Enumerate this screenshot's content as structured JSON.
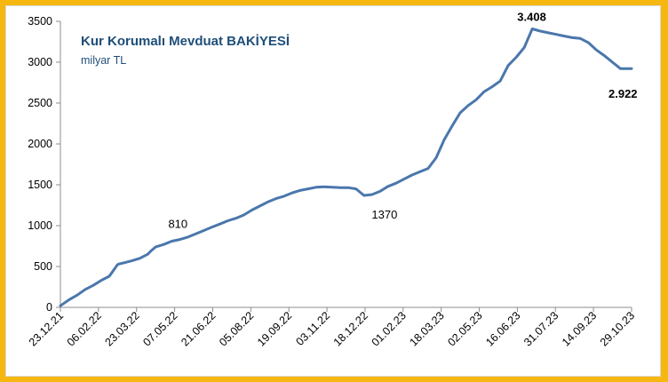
{
  "chart_data": {
    "type": "line",
    "title": "Kur Korumalı Mevduat BAKİYESİ",
    "subtitle": "milyar TL",
    "ylim": [
      0,
      3500
    ],
    "yticks": [
      0,
      500,
      1000,
      1500,
      2000,
      2500,
      3000,
      3500
    ],
    "xlim": [
      "2021-12-23",
      "2023-12-06"
    ],
    "xtick_labels": [
      "23.12.21",
      "06.02.22",
      "23.03.22",
      "07.05.22",
      "21.06.22",
      "05.08.22",
      "19.09.22",
      "03.11.22",
      "18.12.22",
      "01.02.23",
      "18.03.23",
      "02.05.23",
      "16.06.23",
      "31.07.23",
      "14.09.23",
      "29.10.23"
    ],
    "grid": false,
    "legend": "none",
    "line_color": "#4a77ac",
    "annotations": [
      {
        "text": "810",
        "x": "2022-05-10",
        "y": 810,
        "bold": false
      },
      {
        "text": "1370",
        "x": "2023-01-20",
        "y": 1370,
        "bold": false
      },
      {
        "text": "3.408",
        "x": "2023-08-23",
        "y": 3408,
        "bold": true
      },
      {
        "text": "2.922",
        "x": "2023-12-06",
        "y": 2922,
        "bold": true
      }
    ],
    "series": [
      {
        "x": [
          "2021-12-23",
          "2022-01-03",
          "2022-01-13",
          "2022-01-23",
          "2022-02-02",
          "2022-02-12",
          "2022-02-22",
          "2022-03-02",
          "2022-03-04",
          "2022-03-06",
          "2022-03-12",
          "2022-03-22",
          "2022-04-01",
          "2022-04-11",
          "2022-04-15",
          "2022-04-21",
          "2022-05-01",
          "2022-05-11",
          "2022-05-21",
          "2022-05-31",
          "2022-06-10",
          "2022-06-20",
          "2022-06-30",
          "2022-07-10",
          "2022-07-20",
          "2022-07-30",
          "2022-08-09",
          "2022-08-19",
          "2022-08-29",
          "2022-09-08",
          "2022-09-18",
          "2022-09-28",
          "2022-10-08",
          "2022-10-18",
          "2022-10-28",
          "2022-11-07",
          "2022-11-17",
          "2022-11-27",
          "2022-12-07",
          "2022-12-17",
          "2022-12-27",
          "2023-01-06",
          "2023-01-16",
          "2023-01-26",
          "2023-02-05",
          "2023-02-15",
          "2023-02-25",
          "2023-03-07",
          "2023-03-17",
          "2023-03-27",
          "2023-04-06",
          "2023-04-16",
          "2023-04-26",
          "2023-05-06",
          "2023-05-16",
          "2023-05-26",
          "2023-06-05",
          "2023-06-15",
          "2023-06-25",
          "2023-07-05",
          "2023-07-15",
          "2023-07-25",
          "2023-08-04",
          "2023-08-14",
          "2023-08-24",
          "2023-09-03",
          "2023-09-13",
          "2023-09-23",
          "2023-10-03",
          "2023-10-13",
          "2023-10-23",
          "2023-11-02",
          "2023-11-12",
          "2023-11-22",
          "2023-12-06"
        ],
        "values": [
          20,
          95,
          150,
          220,
          270,
          330,
          380,
          490,
          520,
          530,
          545,
          570,
          600,
          650,
          690,
          740,
          770,
          810,
          830,
          860,
          900,
          940,
          980,
          1020,
          1060,
          1090,
          1130,
          1190,
          1240,
          1290,
          1330,
          1360,
          1400,
          1430,
          1450,
          1470,
          1475,
          1470,
          1465,
          1465,
          1450,
          1370,
          1380,
          1420,
          1480,
          1520,
          1570,
          1620,
          1660,
          1700,
          1830,
          2050,
          2220,
          2380,
          2470,
          2540,
          2640,
          2700,
          2770,
          2960,
          3060,
          3180,
          3408,
          3380,
          3360,
          3340,
          3320,
          3300,
          3290,
          3240,
          3150,
          3080,
          3000,
          2922,
          2922
        ]
      }
    ]
  }
}
